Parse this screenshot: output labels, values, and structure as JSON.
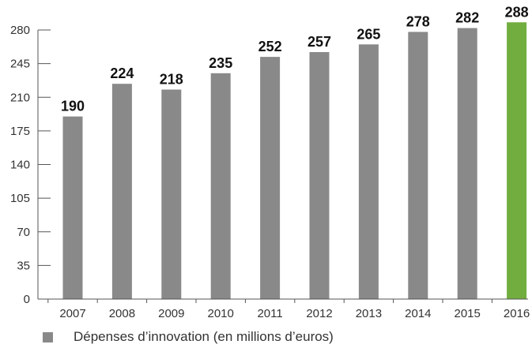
{
  "chart_data": {
    "type": "bar",
    "categories": [
      "2007",
      "2008",
      "2009",
      "2010",
      "2011",
      "2012",
      "2013",
      "2014",
      "2015",
      "2016"
    ],
    "series": [
      {
        "name": "Dépenses d’innovation (en millions d’euros)",
        "values": [
          190,
          224,
          218,
          235,
          252,
          257,
          265,
          278,
          282,
          288
        ]
      }
    ],
    "data_labels": [
      "190",
      "224",
      "218",
      "235",
      "252",
      "257",
      "265",
      "278",
      "282",
      "288"
    ],
    "y_ticks": [
      0,
      35,
      70,
      105,
      140,
      175,
      210,
      245,
      280
    ],
    "ylim": [
      0,
      280
    ],
    "grid": false,
    "legend_position": "bottom-left",
    "colors": {
      "bar": "#898989",
      "highlight": "#71ad3f",
      "axis": "#555555"
    },
    "highlight_index": 9
  },
  "legend": {
    "label": "Dépenses d’innovation (en millions d’euros)"
  }
}
